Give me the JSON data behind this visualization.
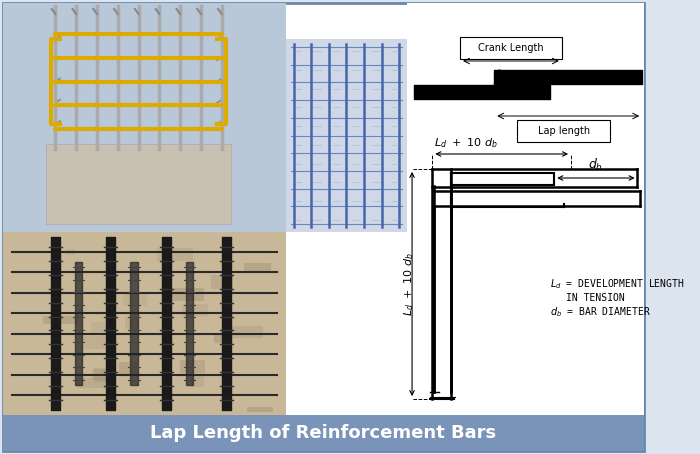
{
  "title": "Lap Length of Reinforcement Bars",
  "title_bg_color": "#7a93b8",
  "title_text_color": "#ffffff",
  "title_fontsize": 13,
  "bg_color": "#dce4ef",
  "border_color": "#6688aa",
  "border_lw": 2,
  "main_bg": "#ffffff",
  "crank_label": "Crank Length",
  "lap_label": "Lap length",
  "ld_text": "L d  •  10 d b",
  "ld_horiz_text": "L d  +  10 d b",
  "db_text": "d b",
  "legend_line1": "L d = DEVELOPMENT LENGTH",
  "legend_line2": "IN TENSION",
  "legend_line3": "d b = BAR DIAMETER"
}
